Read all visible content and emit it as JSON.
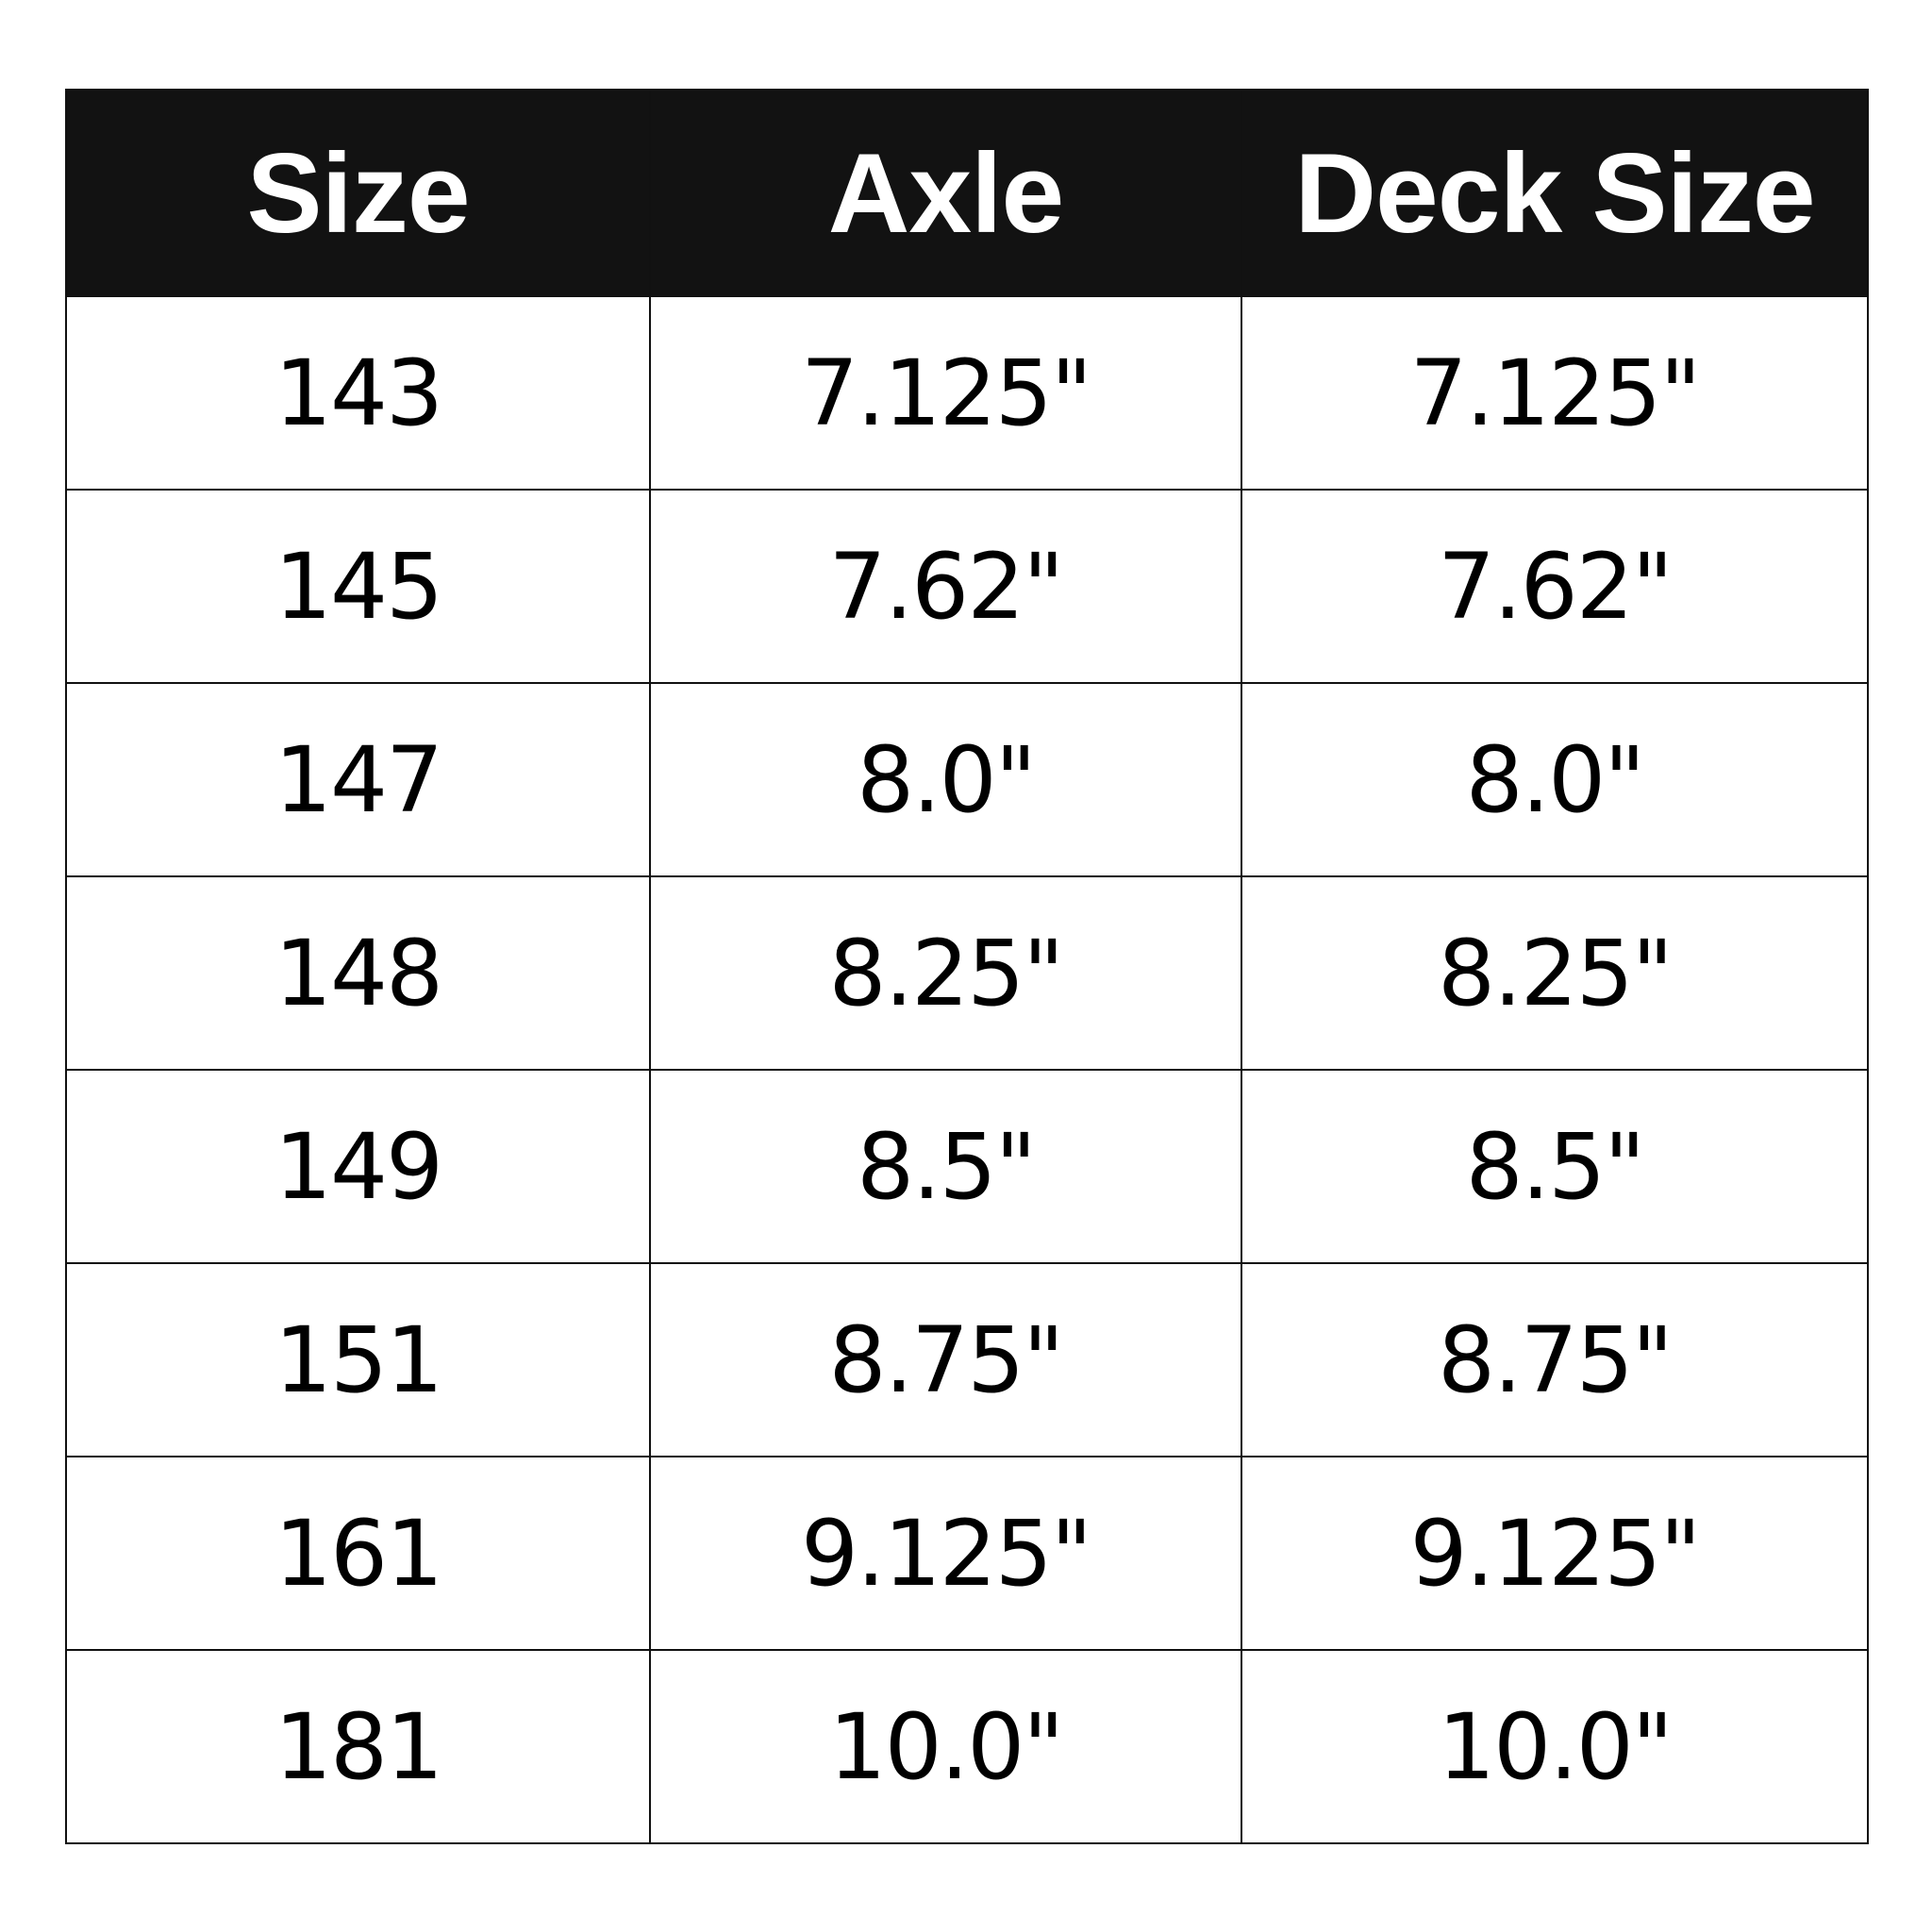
{
  "table": {
    "headers": [
      "Size",
      "Axle",
      "Deck Size"
    ],
    "rows": [
      [
        "143",
        "7.125\"",
        "7.125\""
      ],
      [
        "145",
        "7.62\"",
        "7.62\""
      ],
      [
        "147",
        "8.0\"",
        "8.0\""
      ],
      [
        "148",
        "8.25\"",
        "8.25\""
      ],
      [
        "149",
        "8.5\"",
        "8.5\""
      ],
      [
        "151",
        "8.75\"",
        "8.75\""
      ],
      [
        "161",
        "9.125\"",
        "9.125\""
      ],
      [
        "181",
        "10.0\"",
        "10.0\""
      ]
    ]
  },
  "colors": {
    "header_bg": "#121212",
    "header_text": "#ffffff",
    "border": "#111111"
  }
}
